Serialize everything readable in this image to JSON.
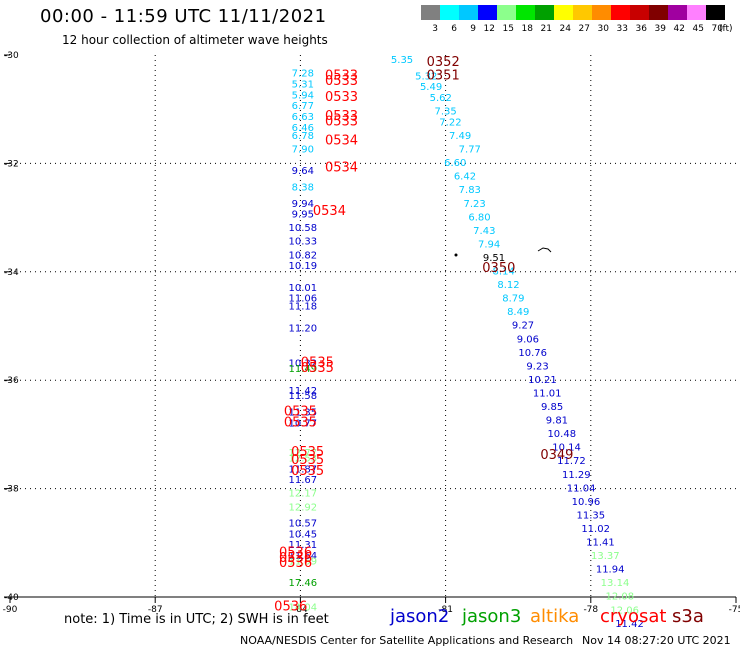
{
  "header": {
    "title": "00:00 - 11:59 UTC 11/11/2021",
    "subtitle": "12 hour collection of altimeter wave heights"
  },
  "scale": {
    "labels": [
      "3",
      "6",
      "9",
      "12",
      "15",
      "18",
      "21",
      "24",
      "27",
      "30",
      "33",
      "36",
      "39",
      "42",
      "45",
      "70"
    ],
    "unit": "(ft)",
    "colors": [
      "#808080",
      "#00ffff",
      "#00c8ff",
      "#0000ff",
      "#8cff8c",
      "#00e600",
      "#00a000",
      "#ffff00",
      "#ffc800",
      "#ff8c00",
      "#ff0000",
      "#c80000",
      "#800000",
      "#a000a0",
      "#ff80ff",
      "#000000"
    ]
  },
  "footer": {
    "note": "note: 1) Time is in UTC; 2) SWH is in feet",
    "satellites": [
      {
        "name": "jason2",
        "color": "#0000cc"
      },
      {
        "name": "jason3",
        "color": "#00a000"
      },
      {
        "name": "altika",
        "color": "#ff8c00"
      },
      {
        "name": "cryosat",
        "color": "#ff0000"
      },
      {
        "name": "s3a",
        "color": "#800000"
      }
    ],
    "credit": "NOAA/NESDIS Center for Satellite Applications and Research",
    "timestamp": "Nov 14 08:27:20 UTC 2021"
  },
  "chart_data": {
    "type": "scatter",
    "xlim": [
      -90,
      -75
    ],
    "ylim": [
      -40,
      -30
    ],
    "x_ticks": [
      -90,
      -87,
      -84,
      -81,
      -78,
      -75
    ],
    "x_tick_labels": [
      "-90",
      "-87",
      "-84",
      "-81",
      "-78",
      "-75"
    ],
    "y_ticks": [
      -30,
      -32,
      -34,
      -36,
      -38,
      -40
    ],
    "y_tick_labels": [
      "-30",
      "-32",
      "-34",
      "-36",
      "-38",
      "-40"
    ],
    "grid": true,
    "points": [
      {
        "x": -81.9,
        "y": -30.15,
        "label": "5.35",
        "color": "#00c8ff"
      },
      {
        "x": -81.4,
        "y": -30.45,
        "label": "5.32",
        "color": "#00c8ff"
      },
      {
        "x": -81.3,
        "y": -30.65,
        "label": "5.49",
        "color": "#00c8ff"
      },
      {
        "x": -81.1,
        "y": -30.85,
        "label": "5.62",
        "color": "#00c8ff"
      },
      {
        "x": -81.0,
        "y": -31.1,
        "label": "7.35",
        "color": "#00c8ff"
      },
      {
        "x": -80.9,
        "y": -31.3,
        "label": "7.22",
        "color": "#00c8ff"
      },
      {
        "x": -80.7,
        "y": -31.55,
        "label": "7.49",
        "color": "#00c8ff"
      },
      {
        "x": -80.5,
        "y": -31.8,
        "label": "7.77",
        "color": "#00c8ff"
      },
      {
        "x": -80.8,
        "y": -32.05,
        "label": "6.60",
        "color": "#00c8ff"
      },
      {
        "x": -80.6,
        "y": -32.3,
        "label": "6.42",
        "color": "#00c8ff"
      },
      {
        "x": -80.5,
        "y": -32.55,
        "label": "7.83",
        "color": "#00c8ff"
      },
      {
        "x": -80.4,
        "y": -32.8,
        "label": "7.23",
        "color": "#00c8ff"
      },
      {
        "x": -80.3,
        "y": -33.05,
        "label": "6.80",
        "color": "#00c8ff"
      },
      {
        "x": -80.2,
        "y": -33.3,
        "label": "7.43",
        "color": "#00c8ff"
      },
      {
        "x": -80.1,
        "y": -33.55,
        "label": "7.94",
        "color": "#00c8ff"
      },
      {
        "x": -80.0,
        "y": -33.8,
        "label": "9.51",
        "color": "#000000"
      },
      {
        "x": -79.8,
        "y": -34.05,
        "label": "8.14",
        "color": "#00c8ff"
      },
      {
        "x": -79.7,
        "y": -34.3,
        "label": "8.12",
        "color": "#00c8ff"
      },
      {
        "x": -79.6,
        "y": -34.55,
        "label": "8.79",
        "color": "#00c8ff"
      },
      {
        "x": -79.5,
        "y": -34.8,
        "label": "8.49",
        "color": "#00c8ff"
      },
      {
        "x": -79.4,
        "y": -35.05,
        "label": "9.27",
        "color": "#0000cc"
      },
      {
        "x": -79.3,
        "y": -35.3,
        "label": "9.06",
        "color": "#0000cc"
      },
      {
        "x": -79.2,
        "y": -35.55,
        "label": "10.76",
        "color": "#0000cc"
      },
      {
        "x": -79.1,
        "y": -35.8,
        "label": "9.23",
        "color": "#0000cc"
      },
      {
        "x": -79.0,
        "y": -36.05,
        "label": "10.21",
        "color": "#0000cc"
      },
      {
        "x": -78.9,
        "y": -36.3,
        "label": "11.01",
        "color": "#0000cc"
      },
      {
        "x": -78.8,
        "y": -36.55,
        "label": "9.85",
        "color": "#0000cc"
      },
      {
        "x": -78.7,
        "y": -36.8,
        "label": "9.81",
        "color": "#0000cc"
      },
      {
        "x": -78.6,
        "y": -37.05,
        "label": "10.48",
        "color": "#0000cc"
      },
      {
        "x": -78.5,
        "y": -37.3,
        "label": "10.14",
        "color": "#0000cc"
      },
      {
        "x": -78.4,
        "y": -37.55,
        "label": "11.72",
        "color": "#0000cc"
      },
      {
        "x": -78.3,
        "y": -37.8,
        "label": "11.29",
        "color": "#0000cc"
      },
      {
        "x": -78.2,
        "y": -38.05,
        "label": "11.04",
        "color": "#0000cc"
      },
      {
        "x": -78.1,
        "y": -38.3,
        "label": "10.96",
        "color": "#0000cc"
      },
      {
        "x": -78.0,
        "y": -38.55,
        "label": "11.35",
        "color": "#0000cc"
      },
      {
        "x": -77.9,
        "y": -38.8,
        "label": "11.02",
        "color": "#0000cc"
      },
      {
        "x": -77.8,
        "y": -39.05,
        "label": "11.41",
        "color": "#0000cc"
      },
      {
        "x": -77.7,
        "y": -39.3,
        "label": "13.37",
        "color": "#8cff8c"
      },
      {
        "x": -77.6,
        "y": -39.55,
        "label": "11.94",
        "color": "#0000cc"
      },
      {
        "x": -77.5,
        "y": -39.8,
        "label": "13.14",
        "color": "#8cff8c"
      },
      {
        "x": -77.4,
        "y": -40.05,
        "label": "12.08",
        "color": "#8cff8c"
      },
      {
        "x": -77.3,
        "y": -40.3,
        "label": "12.06",
        "color": "#8cff8c"
      },
      {
        "x": -77.2,
        "y": -40.55,
        "label": "11.42",
        "color": "#0000cc"
      },
      {
        "x": -83.95,
        "y": -30.4,
        "label": "7.28",
        "color": "#00c8ff"
      },
      {
        "x": -83.95,
        "y": -30.6,
        "label": "5.31",
        "color": "#00c8ff"
      },
      {
        "x": -83.95,
        "y": -30.8,
        "label": "5.94",
        "color": "#00c8ff"
      },
      {
        "x": -83.95,
        "y": -31.0,
        "label": "6.77",
        "color": "#00c8ff"
      },
      {
        "x": -83.95,
        "y": -31.2,
        "label": "6.63",
        "color": "#00c8ff"
      },
      {
        "x": -83.95,
        "y": -31.4,
        "label": "6.46",
        "color": "#00c8ff"
      },
      {
        "x": -83.95,
        "y": -31.55,
        "label": "6.78",
        "color": "#00c8ff"
      },
      {
        "x": -83.95,
        "y": -31.8,
        "label": "7.90",
        "color": "#00c8ff"
      },
      {
        "x": -83.95,
        "y": -32.2,
        "label": "9.64",
        "color": "#0000cc"
      },
      {
        "x": -83.95,
        "y": -32.5,
        "label": "8.38",
        "color": "#00c8ff"
      },
      {
        "x": -83.95,
        "y": -32.8,
        "label": "9.94",
        "color": "#0000cc"
      },
      {
        "x": -83.95,
        "y": -33.0,
        "label": "9.95",
        "color": "#0000cc"
      },
      {
        "x": -83.95,
        "y": -33.25,
        "label": "10.58",
        "color": "#0000cc"
      },
      {
        "x": -83.95,
        "y": -33.5,
        "label": "10.33",
        "color": "#0000cc"
      },
      {
        "x": -83.95,
        "y": -33.75,
        "label": "10.82",
        "color": "#0000cc"
      },
      {
        "x": -83.95,
        "y": -33.95,
        "label": "10.19",
        "color": "#0000cc"
      },
      {
        "x": -83.95,
        "y": -34.35,
        "label": "10.01",
        "color": "#0000cc"
      },
      {
        "x": -83.95,
        "y": -34.55,
        "label": "11.06",
        "color": "#0000cc"
      },
      {
        "x": -83.95,
        "y": -34.7,
        "label": "11.18",
        "color": "#0000cc"
      },
      {
        "x": -83.95,
        "y": -35.1,
        "label": "11.20",
        "color": "#0000cc"
      },
      {
        "x": -83.95,
        "y": -35.75,
        "label": "10.32",
        "color": "#0000cc"
      },
      {
        "x": -83.95,
        "y": -35.85,
        "label": "11.49",
        "color": "#00a000"
      },
      {
        "x": -83.95,
        "y": -36.25,
        "label": "11.42",
        "color": "#0000cc"
      },
      {
        "x": -83.95,
        "y": -36.35,
        "label": "11.58",
        "color": "#0000cc"
      },
      {
        "x": -83.95,
        "y": -36.65,
        "label": "11.35",
        "color": "#0000cc"
      },
      {
        "x": -83.95,
        "y": -36.85,
        "label": "10.77",
        "color": "#0000cc"
      },
      {
        "x": -83.95,
        "y": -37.4,
        "label": "12.77",
        "color": "#8cff8c"
      },
      {
        "x": -83.95,
        "y": -37.5,
        "label": "12.53",
        "color": "#8cff8c"
      },
      {
        "x": -83.95,
        "y": -37.7,
        "label": "11.87",
        "color": "#0000cc"
      },
      {
        "x": -83.95,
        "y": -37.9,
        "label": "11.67",
        "color": "#0000cc"
      },
      {
        "x": -83.95,
        "y": -38.15,
        "label": "12.17",
        "color": "#8cff8c"
      },
      {
        "x": -83.95,
        "y": -38.4,
        "label": "12.92",
        "color": "#8cff8c"
      },
      {
        "x": -83.95,
        "y": -38.7,
        "label": "10.57",
        "color": "#0000cc"
      },
      {
        "x": -83.95,
        "y": -38.9,
        "label": "10.45",
        "color": "#0000cc"
      },
      {
        "x": -83.95,
        "y": -39.1,
        "label": "11.31",
        "color": "#0000cc"
      },
      {
        "x": -83.95,
        "y": -39.3,
        "label": "11.64",
        "color": "#0000cc"
      },
      {
        "x": -83.95,
        "y": -39.4,
        "label": "11.59",
        "color": "#8cff8c"
      },
      {
        "x": -83.95,
        "y": -39.8,
        "label": "17.46",
        "color": "#00a000"
      },
      {
        "x": -83.95,
        "y": -40.25,
        "label": "14.04",
        "color": "#8cff8c"
      }
    ],
    "passes": [
      {
        "x": -81.05,
        "y": -30.2,
        "label": "0352",
        "color": "#800000"
      },
      {
        "x": -81.05,
        "y": -30.45,
        "label": "0351",
        "color": "#800000"
      },
      {
        "x": -83.15,
        "y": -30.45,
        "label": "0533",
        "color": "#ff0000"
      },
      {
        "x": -83.15,
        "y": -30.55,
        "label": "0533",
        "color": "#ff0000"
      },
      {
        "x": -83.15,
        "y": -30.85,
        "label": "0533",
        "color": "#ff0000"
      },
      {
        "x": -83.15,
        "y": -31.2,
        "label": "0533",
        "color": "#ff0000"
      },
      {
        "x": -83.15,
        "y": -31.3,
        "label": "0533",
        "color": "#ff0000"
      },
      {
        "x": -83.15,
        "y": -31.65,
        "label": "0534",
        "color": "#ff0000"
      },
      {
        "x": -83.15,
        "y": -32.15,
        "label": "0534",
        "color": "#ff0000"
      },
      {
        "x": -83.4,
        "y": -32.95,
        "label": "0534",
        "color": "#ff0000"
      },
      {
        "x": -79.9,
        "y": -34.0,
        "label": "0350",
        "color": "#800000"
      },
      {
        "x": -83.65,
        "y": -35.75,
        "label": "0535",
        "color": "#ff0000"
      },
      {
        "x": -83.65,
        "y": -35.85,
        "label": "0535",
        "color": "#ff0000"
      },
      {
        "x": -84.0,
        "y": -36.65,
        "label": "0535",
        "color": "#ff0000"
      },
      {
        "x": -84.0,
        "y": -36.85,
        "label": "0535",
        "color": "#ff0000"
      },
      {
        "x": -83.85,
        "y": -37.4,
        "label": "0535",
        "color": "#ff0000"
      },
      {
        "x": -83.85,
        "y": -37.55,
        "label": "0535",
        "color": "#ff0000"
      },
      {
        "x": -83.85,
        "y": -37.75,
        "label": "0535",
        "color": "#ff0000"
      },
      {
        "x": -78.7,
        "y": -37.45,
        "label": "0349",
        "color": "#800000"
      },
      {
        "x": -84.1,
        "y": -39.25,
        "label": "0536",
        "color": "#ff0000"
      },
      {
        "x": -84.1,
        "y": -39.35,
        "label": "0536",
        "color": "#ff0000"
      },
      {
        "x": -84.1,
        "y": -39.45,
        "label": "0536",
        "color": "#ff0000"
      },
      {
        "x": -84.2,
        "y": -40.25,
        "label": "0536",
        "color": "#ff0000"
      }
    ]
  }
}
